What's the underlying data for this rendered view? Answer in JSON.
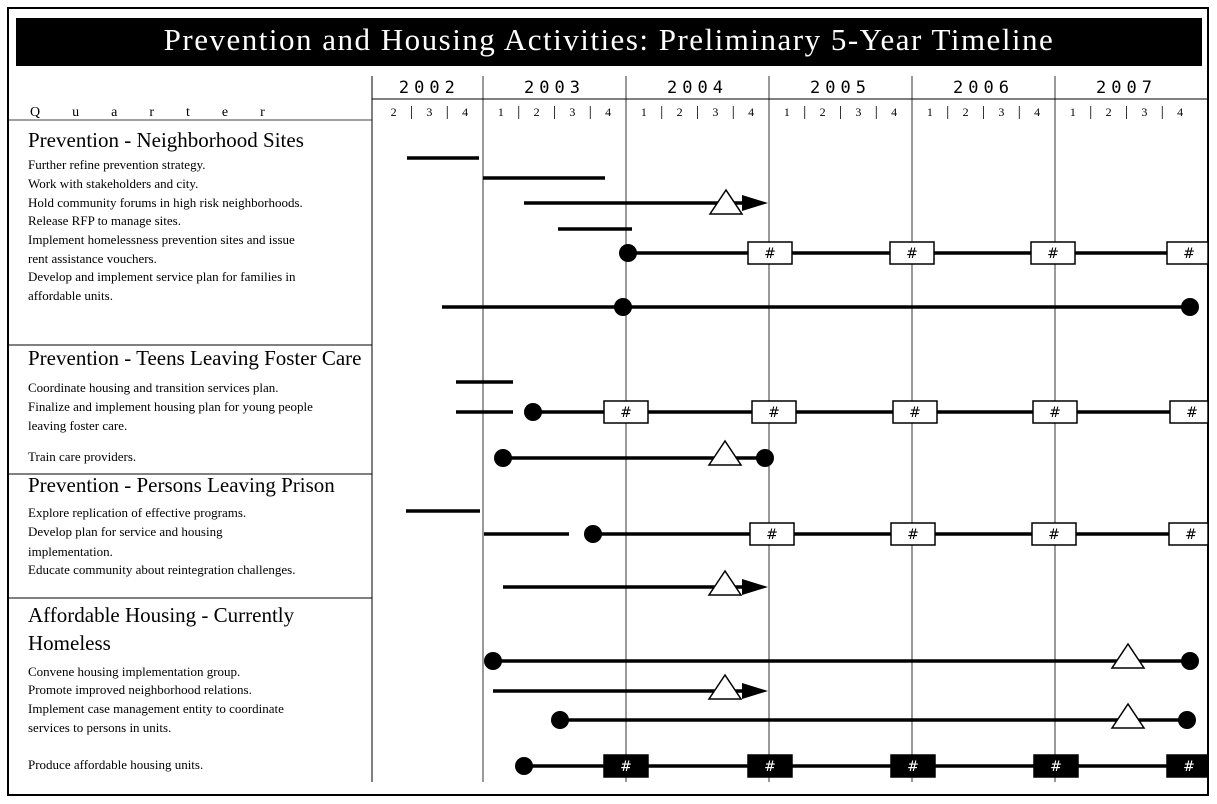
{
  "title": "Prevention and Housing Activities: Preliminary 5-Year Timeline",
  "quarter_label": "Quarter",
  "milestone_label": "#",
  "years": [
    {
      "label": "2002",
      "quarters": [
        "2",
        "3",
        "4"
      ]
    },
    {
      "label": "2003",
      "quarters": [
        "1",
        "2",
        "3",
        "4"
      ]
    },
    {
      "label": "2004",
      "quarters": [
        "1",
        "2",
        "3",
        "4"
      ]
    },
    {
      "label": "2005",
      "quarters": [
        "1",
        "2",
        "3",
        "4"
      ]
    },
    {
      "label": "2006",
      "quarters": [
        "1",
        "2",
        "3",
        "4"
      ]
    },
    {
      "label": "2007",
      "quarters": [
        "1",
        "2",
        "3",
        "4"
      ]
    }
  ],
  "sections": [
    {
      "heading": [
        "Prevention - Neighborhood Sites"
      ],
      "tasks": [
        {
          "lines": [
            "Further refine prevention strategy."
          ]
        },
        {
          "lines": [
            "Work with stakeholders and city."
          ]
        },
        {
          "lines": [
            "Hold community forums in high risk neighborhoods."
          ]
        },
        {
          "lines": [
            "Release RFP to manage sites."
          ]
        },
        {
          "lines": [
            "Implement homelessness prevention sites and issue",
            "rent assistance vouchers."
          ]
        },
        {
          "lines": [
            "Develop and implement service plan for families in",
            "affordable units."
          ]
        }
      ]
    },
    {
      "heading": [
        "Prevention - Teens Leaving Foster Care"
      ],
      "tasks": [
        {
          "lines": [
            "Coordinate housing and transition services plan."
          ]
        },
        {
          "lines": [
            "Finalize and implement housing plan for young people",
            "leaving foster care."
          ]
        },
        {
          "lines": [
            "Train care providers."
          ]
        }
      ]
    },
    {
      "heading": [
        "Prevention - Persons Leaving Prison"
      ],
      "tasks": [
        {
          "lines": [
            "Explore replication of effective programs."
          ]
        },
        {
          "lines": [
            "Develop plan for service and housing",
            "implementation."
          ]
        },
        {
          "lines": [
            "Educate community about reintegration challenges."
          ]
        }
      ]
    },
    {
      "heading": [
        "Affordable Housing - Currently",
        "Homeless"
      ],
      "tasks": [
        {
          "lines": [
            "Convene housing implementation group."
          ]
        },
        {
          "lines": [
            "Promote improved neighborhood relations."
          ]
        },
        {
          "lines": [
            "Implement case management entity to coordinate",
            "services to persons in units."
          ]
        },
        {
          "lines": [
            "Produce affordable housing units."
          ]
        }
      ]
    }
  ]
}
